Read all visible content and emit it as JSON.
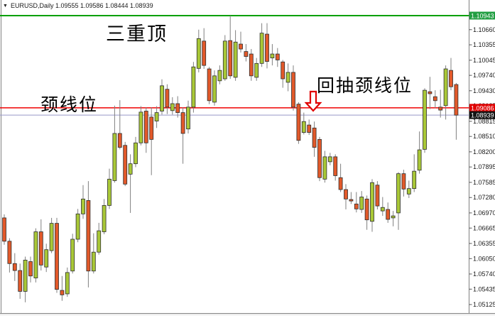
{
  "window": {
    "dropdown_icon": "▼",
    "title": "EURUSD,Daily  1.09555 1.09586 1.08444 1.08939"
  },
  "annotations": {
    "triple_top": "三重顶",
    "neckline": "颈线位",
    "pullback": "回抽颈线位"
  },
  "colors": {
    "background": "#ffffff",
    "plot_border": "#808080",
    "bull_fill": "#a9c837",
    "bear_fill": "#e2592a",
    "candle_border": "#2e2e2e",
    "wick": "#808080",
    "axis_text": "#1a1a1a",
    "annotation_text": "#000000",
    "arrow": "#e00000"
  },
  "chart_data": {
    "type": "candlestick",
    "symbol": "EURUSD",
    "timeframe": "Daily",
    "title": "EURUSD,Daily  1.09555 1.09586 1.08444 1.08939",
    "current_bar": {
      "open": "1.09555",
      "high": "1.09586",
      "low": "1.08444",
      "close": "1.08939"
    },
    "y_axis": {
      "min": 1.04939,
      "max": 1.11057,
      "ticks": [
        "1.10660",
        "1.10355",
        "1.10045",
        "1.09740",
        "1.09430",
        "1.09125",
        "1.08815",
        "1.08510",
        "1.08200",
        "1.07895",
        "1.07585",
        "1.07280",
        "1.06970",
        "1.06665",
        "1.06355",
        "1.06050",
        "1.05740",
        "1.05435",
        "1.05125"
      ]
    },
    "levels": [
      {
        "price": 1.10943,
        "label": "1.10943",
        "color": "#00a000",
        "badge_bg": "#219e42",
        "width": 2
      },
      {
        "price": 1.09086,
        "label": "1.09086",
        "color": "#f00000",
        "badge_bg": "#e00000",
        "width": 1.5
      },
      {
        "price": 1.08939,
        "label": "1.08939",
        "color": "#9696c8",
        "badge_bg": "#141414",
        "width": 1
      }
    ],
    "candles": [
      [
        1.0687,
        1.0694,
        1.0633,
        1.064
      ],
      [
        1.064,
        1.0646,
        1.0577,
        1.0595
      ],
      [
        1.0595,
        1.0616,
        1.056,
        1.0581
      ],
      [
        1.0581,
        1.0595,
        1.0524,
        1.0539
      ],
      [
        1.0539,
        1.0609,
        1.0517,
        1.0602
      ],
      [
        1.0599,
        1.0609,
        1.0557,
        1.057
      ],
      [
        1.0566,
        1.0666,
        1.0557,
        1.0659
      ],
      [
        1.0659,
        1.0684,
        1.0581,
        1.0592
      ],
      [
        1.0588,
        1.0635,
        1.0578,
        1.0623
      ],
      [
        1.0621,
        1.0687,
        1.0616,
        1.0676
      ],
      [
        1.0676,
        1.0687,
        1.0536,
        1.0543
      ],
      [
        1.0541,
        1.057,
        1.052,
        1.0532
      ],
      [
        1.0534,
        1.0587,
        1.0528,
        1.0577
      ],
      [
        1.058,
        1.0655,
        1.0575,
        1.0644
      ],
      [
        1.0644,
        1.0705,
        1.0638,
        1.0695
      ],
      [
        1.0695,
        1.0753,
        1.0685,
        1.0725
      ],
      [
        1.0722,
        1.0761,
        1.0547,
        1.058
      ],
      [
        1.058,
        1.0656,
        1.0575,
        1.0618
      ],
      [
        1.0618,
        1.0677,
        1.0613,
        1.0661
      ],
      [
        1.0659,
        1.0725,
        1.0654,
        1.0712
      ],
      [
        1.0712,
        1.0786,
        1.0705,
        1.0765
      ],
      [
        1.0762,
        1.0913,
        1.0758,
        1.0857
      ],
      [
        1.0857,
        1.0924,
        1.0825,
        1.0829
      ],
      [
        1.0833,
        1.084,
        1.0751,
        1.0755
      ],
      [
        1.0775,
        1.0815,
        1.0697,
        1.0796
      ],
      [
        1.0796,
        1.085,
        1.0789,
        1.0838
      ],
      [
        1.0838,
        1.0912,
        1.0833,
        1.09
      ],
      [
        1.0902,
        1.091,
        1.0818,
        1.0838
      ],
      [
        1.089,
        1.091,
        1.0773,
        1.0845
      ],
      [
        1.0882,
        1.0912,
        1.0868,
        1.0899
      ],
      [
        1.0902,
        1.0966,
        1.0895,
        1.0953
      ],
      [
        1.0946,
        1.0956,
        1.0896,
        1.091
      ],
      [
        1.0903,
        1.093,
        1.0895,
        1.0917
      ],
      [
        1.0917,
        1.0932,
        1.0889,
        1.0899
      ],
      [
        1.0899,
        1.091,
        1.0796,
        1.0857
      ],
      [
        1.0866,
        1.0923,
        1.0857,
        1.091
      ],
      [
        1.091,
        1.1001,
        1.0899,
        1.0991
      ],
      [
        1.0988,
        1.1066,
        1.098,
        1.1048
      ],
      [
        1.1043,
        1.1069,
        1.0987,
        1.0994
      ],
      [
        1.0987,
        1.0991,
        1.0916,
        1.0923
      ],
      [
        1.092,
        1.0984,
        1.0913,
        1.0973
      ],
      [
        1.0963,
        1.0994,
        1.0956,
        1.0984
      ],
      [
        1.0967,
        1.1055,
        1.0963,
        1.1043
      ],
      [
        1.1044,
        1.10943,
        1.0967,
        1.0973
      ],
      [
        1.097,
        1.1065,
        1.0963,
        1.1041
      ],
      [
        1.1037,
        1.1062,
        1.102,
        1.1027
      ],
      [
        1.1022,
        1.1037,
        1.1002,
        1.1012
      ],
      [
        1.1017,
        1.1027,
        1.0963,
        1.0973
      ],
      [
        1.097,
        1.1009,
        1.0963,
        1.0998
      ],
      [
        1.0998,
        1.1079,
        1.0991,
        1.1059
      ],
      [
        1.1057,
        1.1079,
        1.0988,
        1.1002
      ],
      [
        1.1009,
        1.1037,
        1.0994,
        1.1017
      ],
      [
        1.1017,
        1.1029,
        1.0991,
        1.1005
      ],
      [
        1.1001,
        1.1005,
        1.0949,
        1.0967
      ],
      [
        1.096,
        1.0998,
        1.0942,
        1.098
      ],
      [
        1.098,
        1.0994,
        1.0903,
        1.091
      ],
      [
        1.0916,
        1.092,
        1.0836,
        1.0843
      ],
      [
        1.0859,
        1.0899,
        1.0855,
        1.0881
      ],
      [
        1.0874,
        1.0885,
        1.0854,
        1.0859
      ],
      [
        1.0868,
        1.0881,
        1.081,
        1.0829
      ],
      [
        1.0845,
        1.085,
        1.0761,
        1.0768
      ],
      [
        1.0765,
        1.0822,
        1.0758,
        1.081
      ],
      [
        1.08,
        1.0818,
        1.0793,
        1.081
      ],
      [
        1.081,
        1.0815,
        1.0762,
        1.0772
      ],
      [
        1.0768,
        1.0796,
        1.0739,
        1.0744
      ],
      [
        1.0744,
        1.0755,
        1.0704,
        1.0725
      ],
      [
        1.0724,
        1.0739,
        1.0715,
        1.0721
      ],
      [
        1.0715,
        1.0739,
        1.0698,
        1.0705
      ],
      [
        1.0704,
        1.0741,
        1.0697,
        1.0729
      ],
      [
        1.0725,
        1.0732,
        1.0663,
        1.0683
      ],
      [
        1.068,
        1.0765,
        1.0659,
        1.0758
      ],
      [
        1.0753,
        1.0761,
        1.0704,
        1.0711
      ],
      [
        1.0701,
        1.0729,
        1.0691,
        1.0708
      ],
      [
        1.0704,
        1.0718,
        1.0677,
        1.0684
      ],
      [
        1.0687,
        1.0701,
        1.067,
        1.0691
      ],
      [
        1.0697,
        1.0779,
        1.0663,
        1.0776
      ],
      [
        1.0776,
        1.0784,
        1.073,
        1.0745
      ],
      [
        1.0735,
        1.0762,
        1.0727,
        1.0746
      ],
      [
        1.0746,
        1.0815,
        1.0739,
        1.0781
      ],
      [
        1.0783,
        1.0861,
        1.0776,
        1.0824
      ],
      [
        1.0825,
        1.0948,
        1.0818,
        1.0944
      ],
      [
        1.0941,
        1.0971,
        1.0906,
        1.0937
      ],
      [
        1.0931,
        1.0944,
        1.0908,
        1.0923
      ],
      [
        1.091,
        1.0945,
        1.0889,
        1.0904
      ],
      [
        1.0913,
        1.0994,
        1.0885,
        1.0987
      ],
      [
        1.0984,
        1.1009,
        1.0944,
        1.0951
      ],
      [
        1.09555,
        1.09586,
        1.08444,
        1.08939
      ]
    ]
  }
}
